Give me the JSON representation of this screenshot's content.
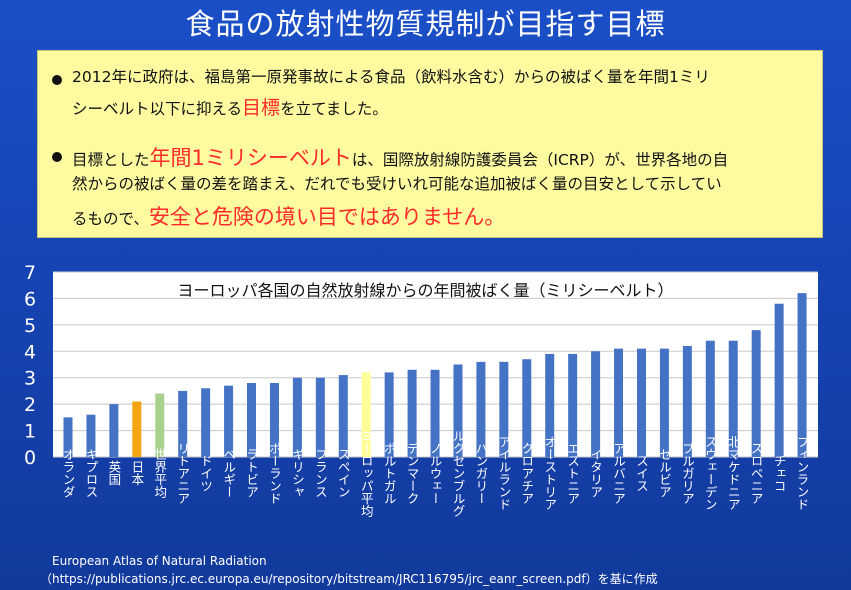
{
  "slide": {
    "title": "食品の放射性物質規制が目指す目標"
  },
  "bullets": [
    {
      "lines": [
        [
          {
            "t": "2012年に政府は、福島第一原発事故による食品（飲料水含む）からの被ばく量を年間1ミリ"
          }
        ],
        [
          {
            "t": "シーベルト以下に抑える"
          },
          {
            "t": "目標",
            "c": "red"
          },
          {
            "t": "を立てました。"
          }
        ]
      ]
    },
    {
      "lines": [
        [
          {
            "t": "目標とした"
          },
          {
            "t": "年間1ミリシーベルト",
            "c": "red"
          },
          {
            "t": "は、国際放射線防護委員会（ICRP）が、世界各地の自"
          }
        ],
        [
          {
            "t": "然からの被ばく量の差を踏まえ、だれでも受けいれ可能な追加被ばく量の目安として示してい"
          }
        ],
        [
          {
            "t": "るもので、"
          },
          {
            "t": "安全と危険の境い目ではありません。",
            "c": "red"
          }
        ]
      ]
    }
  ],
  "chart_data": {
    "type": "bar",
    "title": "ヨーロッパ各国の自然放射線からの年間被ばく量（ミリシーベルト）",
    "ylim": [
      0,
      7
    ],
    "yticks": [
      0,
      1,
      2,
      3,
      4,
      5,
      6,
      7
    ],
    "grid": true,
    "categories": [
      "オランダ",
      "キプロス",
      "英国",
      "日本",
      "世界平均",
      "リトアニア",
      "ドイツ",
      "ベルギー",
      "ラトビア",
      "ポーランド",
      "ギリシャ",
      "フランス",
      "スペイン",
      "ヨーロッパ平均",
      "ポルトガル",
      "デンマーク",
      "ノルウェー",
      "ルクセンブルグ",
      "ハンガリー",
      "アイルランド",
      "クロアチア",
      "オーストリア",
      "エストニア",
      "イタリア",
      "アルバニア",
      "スイス",
      "セルビア",
      "ブルガリア",
      "スウェーデン",
      "北マケドニア",
      "スロベニア",
      "チェコ",
      "フィンランド"
    ],
    "values": [
      1.5,
      1.6,
      2.0,
      2.1,
      2.4,
      2.5,
      2.6,
      2.7,
      2.8,
      2.8,
      3.0,
      3.0,
      3.1,
      3.2,
      3.2,
      3.3,
      3.3,
      3.5,
      3.6,
      3.6,
      3.7,
      3.9,
      3.9,
      4.0,
      4.1,
      4.1,
      4.1,
      4.2,
      4.4,
      4.4,
      4.8,
      5.8,
      6.2
    ],
    "colors": {
      "default": "#4472c4",
      "日本": "#f5a511",
      "世界平均": "#a9d18e",
      "ヨーロッパ平均": "#ffff99"
    }
  },
  "source": {
    "line1": "European Atlas of Natural Radiation",
    "line2": "（https://publications.jrc.ec.europa.eu/repository/bitstream/JRC116795/jrc_eanr_screen.pdf）を基に作成"
  }
}
